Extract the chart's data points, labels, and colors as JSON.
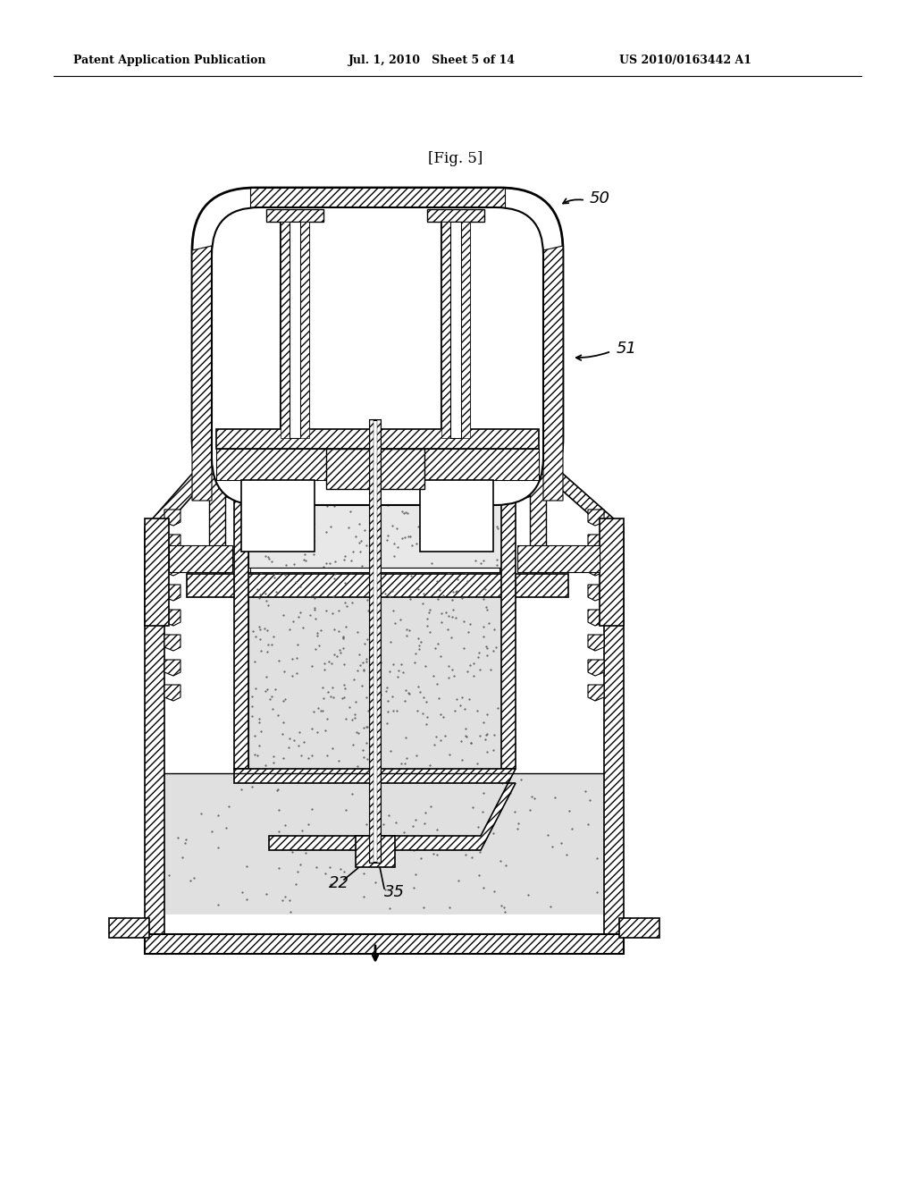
{
  "header_left": "Patent Application Publication",
  "header_mid": "Jul. 1, 2010   Sheet 5 of 14",
  "header_right": "US 2010/0163442 A1",
  "fig_label": "[Fig. 5]",
  "ref_50": "50",
  "ref_51": "51",
  "ref_22": "22",
  "ref_35": "35",
  "bg_color": "#ffffff",
  "line_color": "#000000"
}
